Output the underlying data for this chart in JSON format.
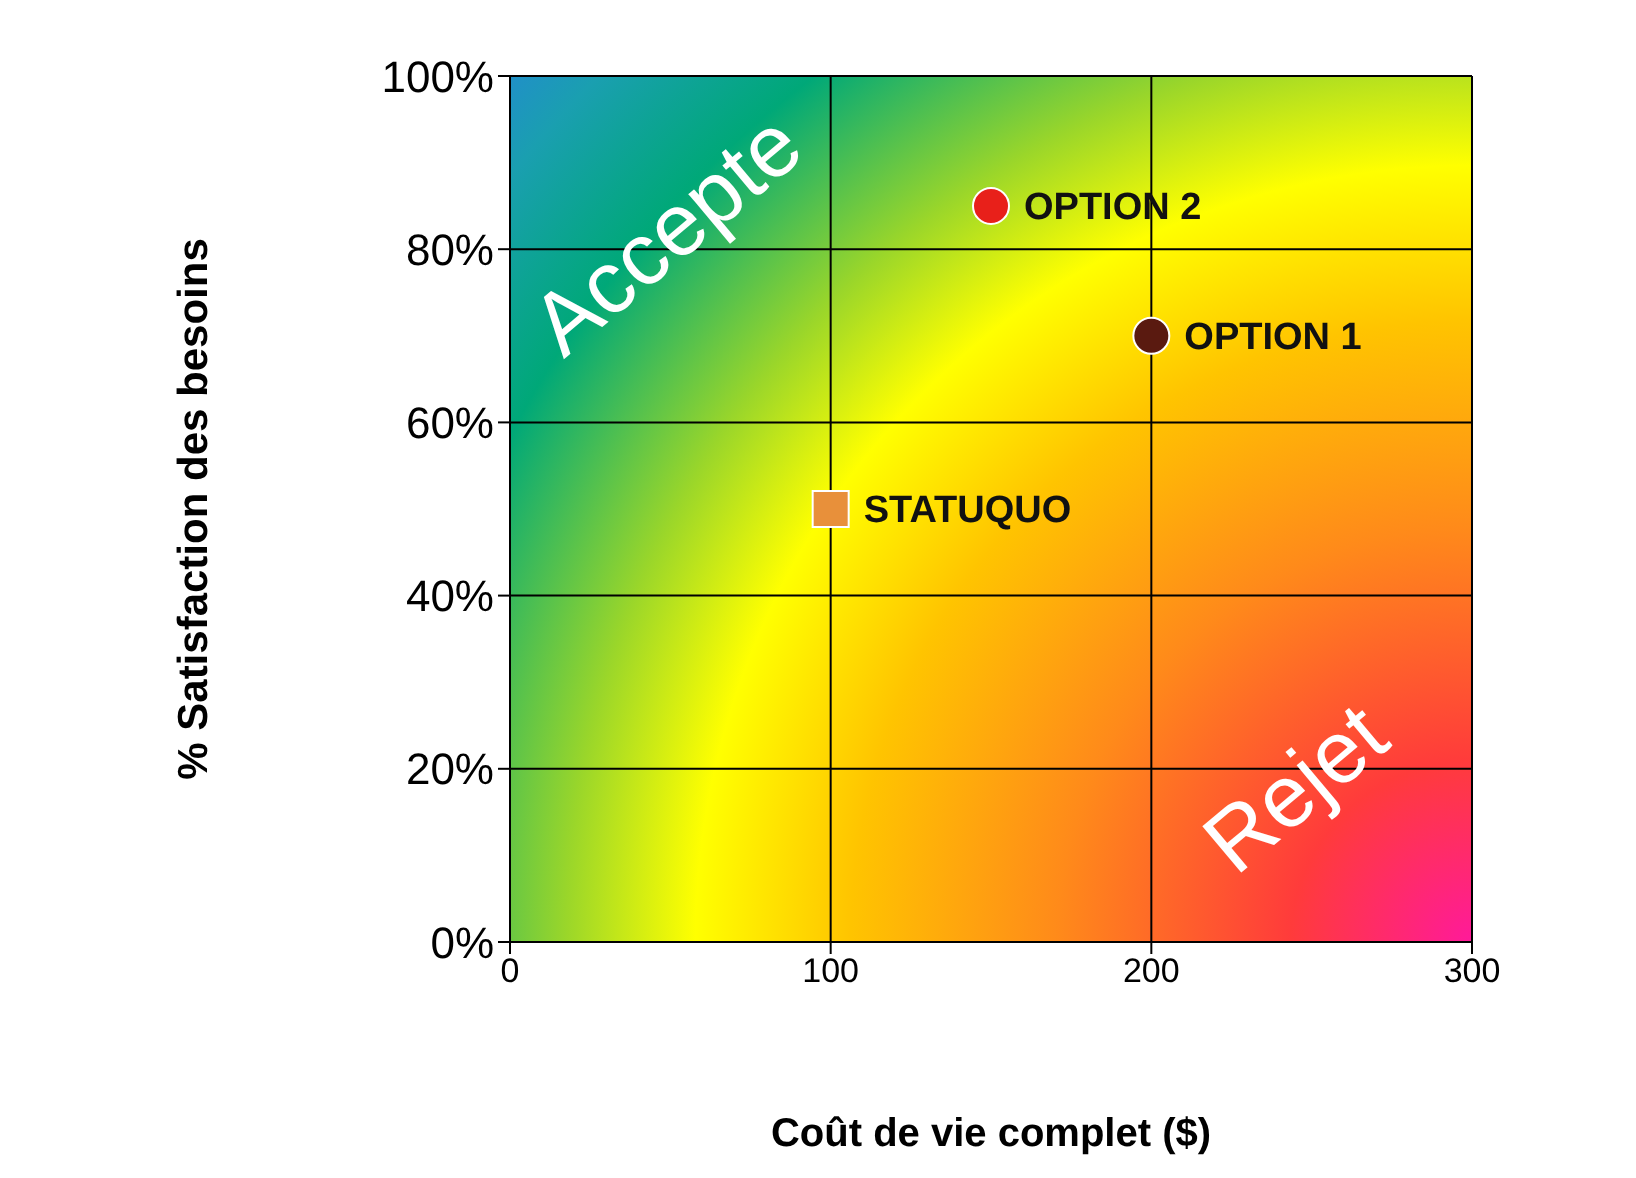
{
  "chart_data": {
    "type": "scatter",
    "xlabel": "Coût de vie complet ($)",
    "ylabel": "% Satisfaction des besoins",
    "xlim": [
      0,
      300
    ],
    "xticks": [
      0,
      100,
      200,
      300
    ],
    "ylim": [
      0,
      100
    ],
    "yticks": [
      {
        "value": 0,
        "label": "0%"
      },
      {
        "value": 20,
        "label": "20%"
      },
      {
        "value": 40,
        "label": "40%"
      },
      {
        "value": 60,
        "label": "60%"
      },
      {
        "value": 80,
        "label": "80%"
      },
      {
        "value": 100,
        "label": "100%"
      }
    ],
    "grid": true,
    "series": [
      {
        "name": "STATUQUO",
        "color": "#e8903a",
        "marker": "square",
        "x": [
          100
        ],
        "values": [
          50
        ]
      },
      {
        "name": "OPTION 2",
        "color": "#e8201a",
        "marker": "circle",
        "x": [
          150
        ],
        "values": [
          85
        ]
      },
      {
        "name": "OPTION 1",
        "color": "#5a1a10",
        "marker": "circle",
        "x": [
          200
        ],
        "values": [
          70
        ]
      }
    ],
    "annotations": [
      "Accepte",
      "Rejet"
    ]
  }
}
